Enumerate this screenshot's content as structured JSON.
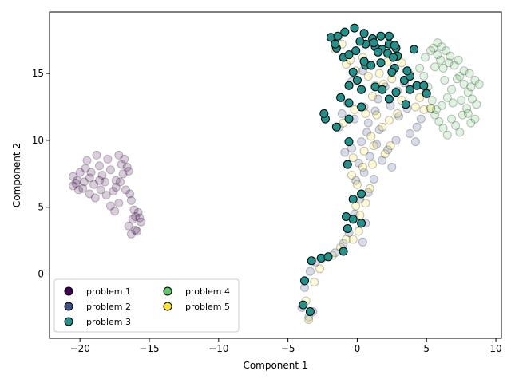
{
  "chart_data": {
    "type": "scatter",
    "title": "",
    "xlabel": "Component 1",
    "ylabel": "Component 2",
    "xlim": [
      -22.2,
      10.4
    ],
    "ylim": [
      -4.8,
      19.6
    ],
    "xticks": [
      -20,
      -15,
      -10,
      -5,
      0,
      5,
      10
    ],
    "yticks": [
      0,
      5,
      10,
      15
    ],
    "grid": false,
    "legend": {
      "placement": "lower-left",
      "columns": 2
    },
    "series": [
      {
        "name": "problem 1",
        "color": "#440154",
        "emphasis": "faded",
        "points": [
          [
            -20.5,
            7.3
          ],
          [
            -20.2,
            7.0
          ],
          [
            -20.0,
            7.6
          ],
          [
            -20.3,
            6.8
          ],
          [
            -19.8,
            6.4
          ],
          [
            -19.6,
            7.9
          ],
          [
            -19.5,
            8.5
          ],
          [
            -19.3,
            7.2
          ],
          [
            -19.0,
            6.7
          ],
          [
            -18.8,
            8.9
          ],
          [
            -18.6,
            8.1
          ],
          [
            -18.4,
            7.4
          ],
          [
            -18.2,
            6.9
          ],
          [
            -18.0,
            8.6
          ],
          [
            -17.8,
            7.8
          ],
          [
            -17.6,
            6.2
          ],
          [
            -17.4,
            7.0
          ],
          [
            -17.2,
            8.9
          ],
          [
            -17.0,
            8.2
          ],
          [
            -16.9,
            7.5
          ],
          [
            -16.8,
            8.6
          ],
          [
            -16.6,
            8.0
          ],
          [
            -16.5,
            7.7
          ],
          [
            -16.4,
            6.0
          ],
          [
            -16.3,
            5.5
          ],
          [
            -16.1,
            4.8
          ],
          [
            -16.0,
            4.3
          ],
          [
            -15.8,
            4.6
          ],
          [
            -15.6,
            3.9
          ],
          [
            -16.0,
            3.3
          ],
          [
            -16.3,
            3.0
          ],
          [
            -16.5,
            3.6
          ],
          [
            -15.9,
            3.2
          ],
          [
            -17.2,
            5.3
          ],
          [
            -17.5,
            4.7
          ],
          [
            -17.8,
            5.1
          ],
          [
            -18.1,
            5.9
          ],
          [
            -18.5,
            6.3
          ],
          [
            -18.9,
            5.7
          ],
          [
            -19.3,
            6.0
          ],
          [
            -19.7,
            6.9
          ],
          [
            -20.1,
            6.3
          ],
          [
            -20.5,
            6.6
          ],
          [
            -19.2,
            7.6
          ],
          [
            -18.6,
            7.0
          ],
          [
            -17.4,
            6.5
          ],
          [
            -17.1,
            6.9
          ],
          [
            -16.7,
            6.3
          ],
          [
            -16.2,
            4.1
          ],
          [
            -15.7,
            4.2
          ]
        ]
      },
      {
        "name": "problem 2",
        "color": "#3b528b",
        "emphasis": "faded",
        "points": [
          [
            -4.0,
            -2.5
          ],
          [
            -3.5,
            -3.2
          ],
          [
            -3.2,
            -2.8
          ],
          [
            -3.8,
            -1.0
          ],
          [
            -3.4,
            0.2
          ],
          [
            -3.0,
            0.9
          ],
          [
            -2.5,
            1.2
          ],
          [
            -1.6,
            1.6
          ],
          [
            -1.0,
            2.3
          ],
          [
            -0.6,
            3.1
          ],
          [
            0.4,
            2.4
          ],
          [
            -0.2,
            4.5
          ],
          [
            0.6,
            3.8
          ],
          [
            0.2,
            5.6
          ],
          [
            0.8,
            6.1
          ],
          [
            -0.1,
            7.0
          ],
          [
            0.5,
            7.6
          ],
          [
            1.2,
            7.1
          ],
          [
            0.1,
            8.3
          ],
          [
            0.9,
            8.8
          ],
          [
            -0.4,
            9.4
          ],
          [
            0.3,
            9.9
          ],
          [
            1.4,
            9.7
          ],
          [
            2.2,
            9.3
          ],
          [
            2.8,
            10.0
          ],
          [
            1.8,
            8.5
          ],
          [
            2.5,
            8.0
          ],
          [
            1.6,
            10.8
          ],
          [
            0.8,
            11.3
          ],
          [
            -0.2,
            11.6
          ],
          [
            -1.1,
            12.0
          ],
          [
            -0.7,
            12.8
          ],
          [
            0.5,
            12.5
          ],
          [
            1.3,
            12.2
          ],
          [
            2.4,
            12.6
          ],
          [
            3.0,
            11.8
          ],
          [
            3.6,
            12.4
          ],
          [
            4.3,
            11.0
          ],
          [
            4.6,
            11.6
          ],
          [
            3.8,
            10.5
          ],
          [
            4.2,
            9.9
          ],
          [
            -1.3,
            11.0
          ],
          [
            -0.4,
            14.4
          ],
          [
            0.4,
            15.2
          ],
          [
            1.5,
            13.1
          ],
          [
            2.0,
            14.0
          ],
          [
            2.9,
            13.7
          ],
          [
            3.4,
            14.3
          ],
          [
            -0.9,
            9.1
          ],
          [
            0.7,
            10.6
          ]
        ]
      },
      {
        "name": "problem 3",
        "color": "#21918c",
        "emphasis": "highlighted",
        "points": [
          [
            -3.9,
            -2.3
          ],
          [
            -3.4,
            -2.8
          ],
          [
            -3.8,
            -0.5
          ],
          [
            -3.3,
            1.0
          ],
          [
            -2.6,
            1.2
          ],
          [
            -2.1,
            1.3
          ],
          [
            -1.0,
            1.7
          ],
          [
            -0.7,
            3.4
          ],
          [
            -0.8,
            4.3
          ],
          [
            -0.3,
            4.1
          ],
          [
            0.3,
            3.8
          ],
          [
            -0.3,
            5.6
          ],
          [
            0.3,
            6.0
          ],
          [
            -0.7,
            8.2
          ],
          [
            -0.6,
            9.9
          ],
          [
            -0.6,
            11.6
          ],
          [
            -1.5,
            11.0
          ],
          [
            -2.3,
            11.6
          ],
          [
            -2.4,
            12.0
          ],
          [
            0.3,
            12.5
          ],
          [
            -0.6,
            12.8
          ],
          [
            -1.2,
            13.2
          ],
          [
            -0.6,
            14.1
          ],
          [
            0.0,
            14.5
          ],
          [
            0.3,
            13.8
          ],
          [
            -0.3,
            15.1
          ],
          [
            0.6,
            15.6
          ],
          [
            1.3,
            14.0
          ],
          [
            1.8,
            13.8
          ],
          [
            2.3,
            13.1
          ],
          [
            2.8,
            13.6
          ],
          [
            3.5,
            12.7
          ],
          [
            3.8,
            13.8
          ],
          [
            3.4,
            14.5
          ],
          [
            3.8,
            14.8
          ],
          [
            4.3,
            14.1
          ],
          [
            4.8,
            14.1
          ],
          [
            5.0,
            13.5
          ],
          [
            4.1,
            16.8
          ],
          [
            3.6,
            15.2
          ],
          [
            2.7,
            15.4
          ],
          [
            2.5,
            15.1
          ],
          [
            1.7,
            15.8
          ],
          [
            1.0,
            15.6
          ],
          [
            0.5,
            15.9
          ],
          [
            -1.5,
            16.9
          ],
          [
            -1.0,
            16.2
          ],
          [
            -0.6,
            16.4
          ],
          [
            -0.1,
            16.7
          ],
          [
            0.6,
            17.2
          ],
          [
            1.3,
            17.0
          ],
          [
            1.8,
            16.8
          ],
          [
            2.3,
            17.2
          ],
          [
            2.8,
            16.9
          ],
          [
            2.9,
            16.3
          ],
          [
            2.2,
            16.5
          ],
          [
            1.5,
            16.6
          ],
          [
            -1.9,
            17.7
          ],
          [
            -1.4,
            17.8
          ],
          [
            -0.9,
            18.1
          ],
          [
            -0.2,
            18.4
          ],
          [
            0.5,
            18.0
          ],
          [
            1.1,
            17.6
          ],
          [
            1.7,
            17.8
          ],
          [
            2.3,
            17.8
          ],
          [
            2.6,
            16.2
          ],
          [
            -1.6,
            17.2
          ],
          [
            0.2,
            17.4
          ],
          [
            1.2,
            17.3
          ],
          [
            2.7,
            17.1
          ]
        ]
      },
      {
        "name": "problem 4",
        "color": "#5ec962",
        "emphasis": "faded",
        "points": [
          [
            5.0,
            13.6
          ],
          [
            5.3,
            12.4
          ],
          [
            5.6,
            11.9
          ],
          [
            5.9,
            11.4
          ],
          [
            6.2,
            10.9
          ],
          [
            6.5,
            10.4
          ],
          [
            6.8,
            11.6
          ],
          [
            7.1,
            11.1
          ],
          [
            7.4,
            10.6
          ],
          [
            7.6,
            11.9
          ],
          [
            7.9,
            12.4
          ],
          [
            8.2,
            11.3
          ],
          [
            8.5,
            11.6
          ],
          [
            8.6,
            12.7
          ],
          [
            8.3,
            13.1
          ],
          [
            8.0,
            13.6
          ],
          [
            7.7,
            14.2
          ],
          [
            7.4,
            14.8
          ],
          [
            7.7,
            15.2
          ],
          [
            8.1,
            15.0
          ],
          [
            8.5,
            14.5
          ],
          [
            8.8,
            14.2
          ],
          [
            8.2,
            14.0
          ],
          [
            6.2,
            15.4
          ],
          [
            6.0,
            16.0
          ],
          [
            5.8,
            16.4
          ],
          [
            5.5,
            16.9
          ],
          [
            5.8,
            17.3
          ],
          [
            6.1,
            17.0
          ],
          [
            6.4,
            16.7
          ],
          [
            6.7,
            16.3
          ],
          [
            7.0,
            15.6
          ],
          [
            7.2,
            14.6
          ],
          [
            6.8,
            13.8
          ],
          [
            6.5,
            13.2
          ],
          [
            6.1,
            12.6
          ],
          [
            5.7,
            12.3
          ],
          [
            5.4,
            13.0
          ],
          [
            5.1,
            14.0
          ],
          [
            4.8,
            14.8
          ],
          [
            4.5,
            15.4
          ],
          [
            4.9,
            16.2
          ],
          [
            5.3,
            16.7
          ],
          [
            5.6,
            15.5
          ],
          [
            6.3,
            14.5
          ],
          [
            6.9,
            12.8
          ],
          [
            7.5,
            13.0
          ],
          [
            8.0,
            12.0
          ],
          [
            7.3,
            16.0
          ],
          [
            6.6,
            15.8
          ]
        ]
      },
      {
        "name": "problem 5",
        "color": "#fde725",
        "emphasis": "faded",
        "points": [
          [
            -3.5,
            -3.4
          ],
          [
            -3.7,
            -2.0
          ],
          [
            -3.1,
            -0.6
          ],
          [
            -2.7,
            0.4
          ],
          [
            -1.8,
            1.4
          ],
          [
            -1.2,
            2.0
          ],
          [
            -0.8,
            2.6
          ],
          [
            -0.3,
            2.6
          ],
          [
            0.1,
            3.2
          ],
          [
            0.2,
            4.4
          ],
          [
            -0.1,
            5.1
          ],
          [
            0.6,
            5.3
          ],
          [
            0.9,
            6.4
          ],
          [
            0.0,
            6.7
          ],
          [
            -0.4,
            7.4
          ],
          [
            0.4,
            8.0
          ],
          [
            1.1,
            8.2
          ],
          [
            -0.3,
            8.7
          ],
          [
            0.5,
            9.2
          ],
          [
            1.2,
            9.6
          ],
          [
            2.0,
            9.0
          ],
          [
            2.4,
            9.6
          ],
          [
            1.0,
            10.3
          ],
          [
            1.8,
            11.0
          ],
          [
            2.3,
            11.5
          ],
          [
            1.4,
            11.9
          ],
          [
            0.6,
            12.0
          ],
          [
            -0.2,
            12.3
          ],
          [
            -1.0,
            11.3
          ],
          [
            2.9,
            12.0
          ],
          [
            3.2,
            13.0
          ],
          [
            4.2,
            12.5
          ],
          [
            4.8,
            12.3
          ],
          [
            5.3,
            12.4
          ],
          [
            4.5,
            13.2
          ],
          [
            1.1,
            13.3
          ],
          [
            1.9,
            14.2
          ],
          [
            2.5,
            14.6
          ],
          [
            0.8,
            14.8
          ],
          [
            -0.1,
            15.2
          ],
          [
            -0.8,
            15.7
          ],
          [
            -1.6,
            16.8
          ],
          [
            -1.1,
            17.2
          ],
          [
            0.4,
            16.2
          ],
          [
            1.6,
            15.0
          ],
          [
            2.2,
            15.9
          ],
          [
            3.2,
            15.8
          ],
          [
            3.8,
            14.9
          ],
          [
            -0.5,
            16.0
          ],
          [
            1.3,
            14.1
          ]
        ]
      }
    ]
  }
}
